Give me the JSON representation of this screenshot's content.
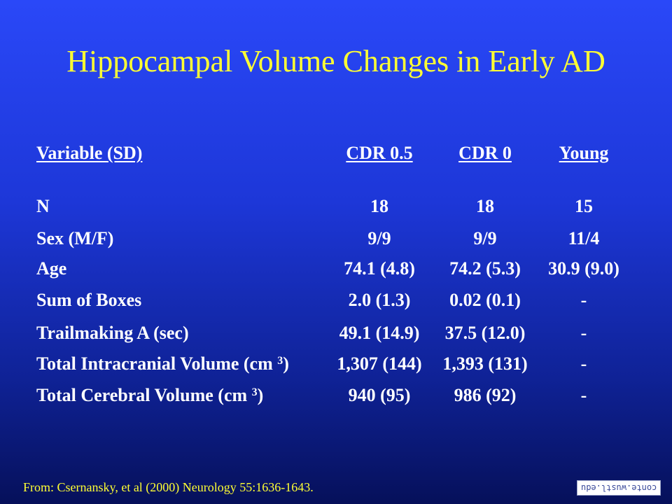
{
  "slide": {
    "title": "Hippocampal Volume Changes in Early AD",
    "footer": "From: Csernansky, et al (2000) Neurology 55:1636-1643.",
    "logo_text": "conte.wustl.edu"
  },
  "table": {
    "headers": [
      "Variable (SD)",
      "CDR 0.5",
      "CDR 0",
      "Young"
    ],
    "rows": [
      {
        "label": "N",
        "sup": "",
        "label_end": "",
        "v1": "18",
        "v2": "18",
        "v3": "15"
      },
      {
        "label": "Sex (M/F)",
        "sup": "",
        "label_end": "",
        "v1": "9/9",
        "v2": "9/9",
        "v3": "11/4"
      },
      {
        "label": "Age",
        "sup": "",
        "label_end": "",
        "v1": "74.1 (4.8)",
        "v2": "74.2 (5.3)",
        "v3": "30.9 (9.0)"
      },
      {
        "label": "Sum of Boxes",
        "sup": "",
        "label_end": "",
        "v1": "2.0 (1.3)",
        "v2": "0.02 (0.1)",
        "v3": "-"
      },
      {
        "label": "Trailmaking A (sec)",
        "sup": "",
        "label_end": "",
        "v1": "49.1 (14.9)",
        "v2": "37.5 (12.0)",
        "v3": "-"
      },
      {
        "label": "Total Intracranial Volume (cm ",
        "sup": "3",
        "label_end": ")",
        "v1": "1,307 (144)",
        "v2": "1,393 (131)",
        "v3": "-"
      },
      {
        "label": "Total Cerebral Volume (cm ",
        "sup": "3",
        "label_end": ")",
        "v1": "940 (95)",
        "v2": "986 (92)",
        "v3": "-"
      }
    ]
  }
}
